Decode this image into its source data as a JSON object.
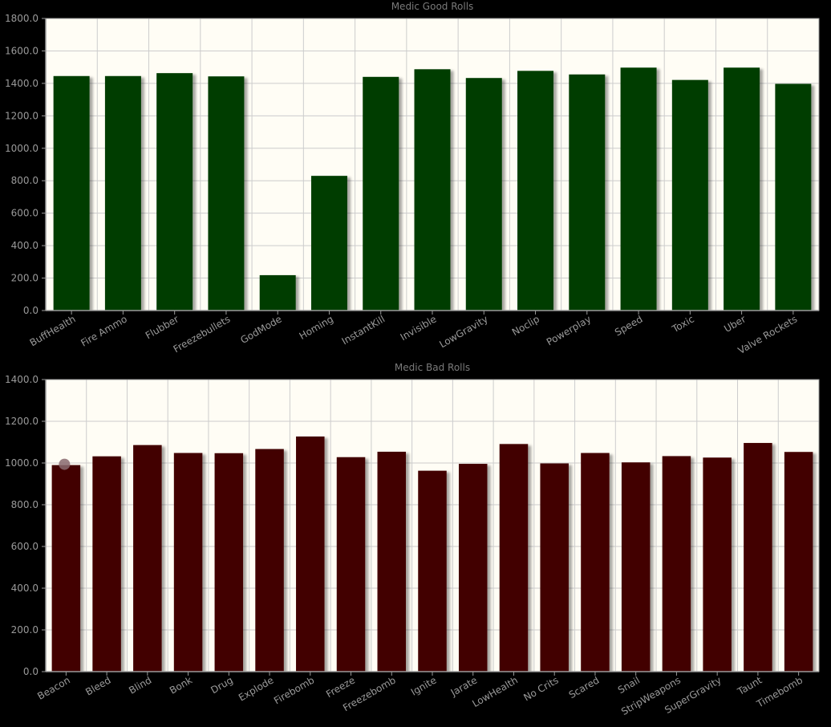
{
  "chart_data": [
    {
      "type": "bar",
      "title": "Medic Good Rolls",
      "xlabel": "",
      "ylabel": "",
      "ylim": [
        0,
        1800
      ],
      "yticks": [
        "0.0",
        "200.0",
        "400.0",
        "600.0",
        "800.0",
        "1000.0",
        "1200.0",
        "1400.0",
        "1600.0",
        "1800.0"
      ],
      "categories": [
        "BuffHealth",
        "Fire Ammo",
        "Flubber",
        "Freezebullets",
        "GodMode",
        "Homing",
        "InstantKill",
        "Invisible",
        "LowGravity",
        "Noclip",
        "Powerplay",
        "Speed",
        "Toxic",
        "Uber",
        "Valve Rockets"
      ],
      "values": [
        1445,
        1445,
        1463,
        1443,
        218,
        830,
        1440,
        1487,
        1433,
        1477,
        1455,
        1497,
        1421,
        1497,
        1397
      ],
      "bar_color": "#003c00",
      "plot_background": "#fffdf5",
      "grid": true,
      "legend": "none"
    },
    {
      "type": "bar",
      "title": "Medic Bad Rolls",
      "xlabel": "",
      "ylabel": "",
      "ylim": [
        0,
        1400
      ],
      "yticks": [
        "0.0",
        "200.0",
        "400.0",
        "600.0",
        "800.0",
        "1000.0",
        "1200.0",
        "1400.0"
      ],
      "categories": [
        "Beacon",
        "Bleed",
        "Blind",
        "Bonk",
        "Drug",
        "Explode",
        "Firebomb",
        "Freeze",
        "Freezebomb",
        "Ignite",
        "Jarate",
        "LowHealth",
        "No Crits",
        "Scared",
        "Snail",
        "StripWeapons",
        "SuperGravity",
        "Taunt",
        "Timebomb"
      ],
      "values": [
        990,
        1032,
        1086,
        1048,
        1047,
        1067,
        1127,
        1028,
        1054,
        963,
        996,
        1091,
        998,
        1048,
        1003,
        1033,
        1026,
        1096,
        1053
      ],
      "bar_color": "#420000",
      "plot_background": "#fffdf5",
      "grid": true,
      "legend": "none",
      "highlight_index": 0
    }
  ]
}
